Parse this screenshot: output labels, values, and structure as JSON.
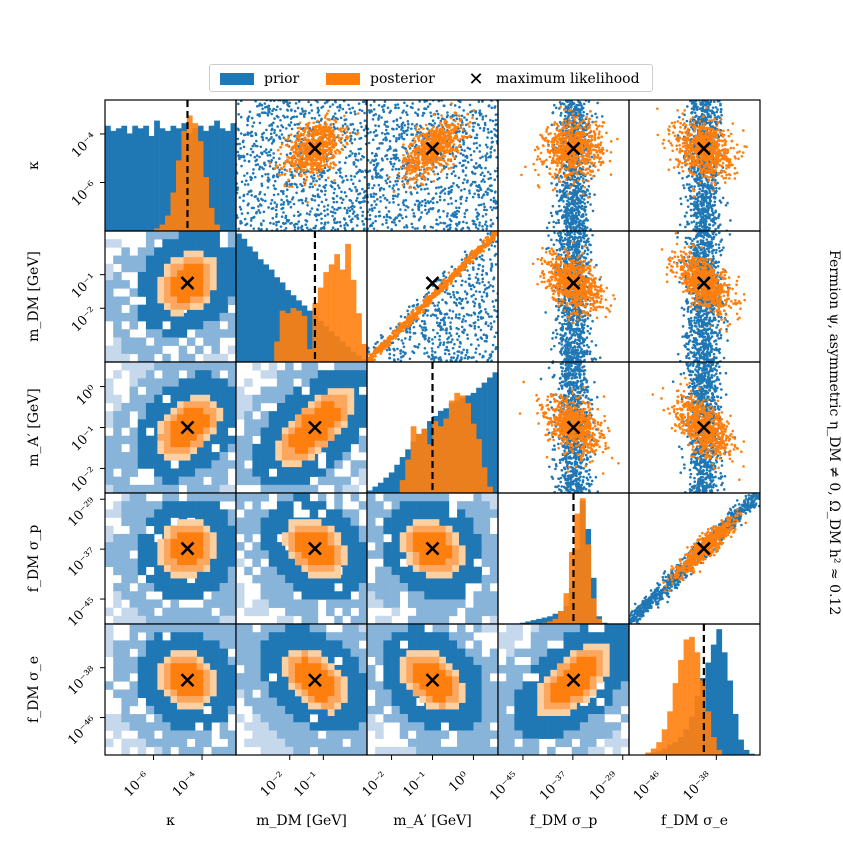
{
  "chart_data": {
    "type": "corner",
    "title": "Fermion ψ, asymmetric η_DM ≠ 0, Ω_DM h² ≈ 0.12",
    "legend": {
      "placement": "top-center",
      "entries": [
        {
          "label": "prior",
          "color": "#1f77b4"
        },
        {
          "label": "posterior",
          "color": "#ff7f0e"
        },
        {
          "label": "maximum likelihood",
          "marker": "x",
          "color": "#000000"
        }
      ]
    },
    "params": [
      {
        "name": "κ",
        "scale": "log",
        "range": [
          -8,
          -2.6
        ],
        "ticks": [
          {
            "v": -6,
            "l": "10⁻⁶"
          },
          {
            "v": -4,
            "l": "10⁻⁴"
          }
        ],
        "ml": -4.6,
        "prior_hist": [
          0.82,
          0.78,
          0.8,
          0.82,
          0.76,
          0.82,
          0.8,
          0.82,
          0.74,
          0.86,
          0.8,
          0.78,
          0.82,
          0.8,
          0.84,
          0.76,
          0.8,
          0.82,
          0.78,
          0.82,
          0.86,
          0.8,
          0.78,
          0.84
        ],
        "post_hist": [
          0,
          0,
          0,
          0,
          0,
          0,
          0,
          0,
          0,
          0.02,
          0.05,
          0.12,
          0.3,
          0.55,
          0.78,
          0.9,
          0.84,
          0.7,
          0.42,
          0.18,
          0.05,
          0,
          0,
          0
        ]
      },
      {
        "name": "m_DM [GeV]",
        "scale": "log",
        "range": [
          -3.6,
          0.3
        ],
        "ticks": [
          {
            "v": -2,
            "l": "10⁻²"
          },
          {
            "v": -1,
            "l": "10⁻¹"
          }
        ],
        "ml": -1.25,
        "prior_hist": [
          1.0,
          0.96,
          0.9,
          0.86,
          0.8,
          0.76,
          0.72,
          0.66,
          0.62,
          0.56,
          0.52,
          0.48,
          0.44,
          0.4,
          0.36,
          0.32,
          0.28,
          0.24,
          0.2,
          0.16,
          0.12,
          0.08,
          0.05,
          0.02
        ],
        "post_hist": [
          0,
          0,
          0,
          0,
          0,
          0,
          0,
          0.16,
          0.4,
          0.38,
          0.42,
          0.4,
          0.36,
          0.1,
          0.46,
          0.58,
          0.7,
          0.76,
          0.84,
          0.72,
          0.92,
          0.64,
          0.38,
          0.14
        ]
      },
      {
        "name": "m_A′ [GeV]",
        "scale": "log",
        "range": [
          -2.6,
          0.6
        ],
        "ticks": [
          {
            "v": -2,
            "l": "10⁻²"
          },
          {
            "v": -1,
            "l": "10⁻¹"
          },
          {
            "v": 0,
            "l": "10⁰"
          }
        ],
        "ml": -1.0,
        "prior_hist": [
          0.02,
          0.05,
          0.08,
          0.12,
          0.16,
          0.22,
          0.28,
          0.34,
          0.4,
          0.46,
          0.5,
          0.56,
          0.6,
          0.64,
          0.66,
          0.7,
          0.72,
          0.74,
          0.76,
          0.78,
          0.82,
          0.86,
          0.9,
          0.94
        ],
        "post_hist": [
          0,
          0,
          0,
          0,
          0,
          0,
          0.1,
          0.26,
          0.52,
          0.46,
          0.5,
          0.38,
          0.56,
          0.52,
          0.58,
          0.72,
          0.78,
          0.76,
          0.7,
          0.54,
          0.42,
          0.2,
          0.05,
          0
        ]
      },
      {
        "name": "f_DM σ_p",
        "scale": "log",
        "range": [
          -49,
          -28
        ],
        "ticks": [
          {
            "v": -45,
            "l": "10⁻⁴⁵"
          },
          {
            "v": -37,
            "l": "10⁻³⁷"
          },
          {
            "v": -29,
            "l": "10⁻²⁹"
          }
        ],
        "yticks": [
          {
            "v": -45,
            "l": "10⁻⁴⁵"
          },
          {
            "v": -37,
            "l": "10⁻³⁷"
          },
          {
            "v": -29,
            "l": "10⁻²⁹"
          }
        ],
        "ml": -36.9,
        "prior_hist": [
          0,
          0,
          0,
          0,
          0.01,
          0.02,
          0.03,
          0.04,
          0.05,
          0.06,
          0.08,
          0.1,
          0.14,
          0.28,
          0.58,
          0.96,
          0.74,
          0.36,
          0.06,
          0.01,
          0,
          0,
          0,
          0
        ],
        "post_hist": [
          0,
          0,
          0,
          0,
          0,
          0,
          0,
          0,
          0.01,
          0.02,
          0.04,
          0.1,
          0.24,
          0.56,
          0.86,
          0.98,
          0.62,
          0.2,
          0.04,
          0,
          0,
          0,
          0,
          0
        ]
      },
      {
        "name": "f_DM σ_e",
        "scale": "log",
        "range": [
          -52,
          -31
        ],
        "ticks": [
          {
            "v": -46,
            "l": "10⁻⁴⁶"
          },
          {
            "v": -38,
            "l": "10⁻³⁸"
          }
        ],
        "ml": -40.0,
        "prior_hist": [
          0,
          0,
          0,
          0.01,
          0.02,
          0.03,
          0.05,
          0.08,
          0.1,
          0.14,
          0.2,
          0.3,
          0.46,
          0.6,
          0.72,
          0.86,
          0.98,
          0.8,
          0.58,
          0.32,
          0.12,
          0.04,
          0.01,
          0
        ],
        "post_hist": [
          0,
          0,
          0,
          0.02,
          0.05,
          0.1,
          0.2,
          0.34,
          0.56,
          0.74,
          0.9,
          0.92,
          0.8,
          0.58,
          0.34,
          0.14,
          0.04,
          0,
          0,
          0,
          0,
          0,
          0,
          0
        ]
      }
    ],
    "posterior_corr": [
      [
        1,
        0.4,
        0.6,
        0.1,
        -0.2
      ],
      [
        0.4,
        1,
        0.95,
        -0.45,
        -0.6
      ],
      [
        0.6,
        0.95,
        1,
        -0.35,
        -0.55
      ],
      [
        0.1,
        -0.45,
        -0.35,
        1,
        0.9
      ],
      [
        -0.2,
        -0.6,
        -0.55,
        0.9,
        1
      ]
    ],
    "colors": {
      "prior": "#1f77b4",
      "prior_light": "#c6d9ec",
      "prior_mid": "#88b4da",
      "posterior": "#ff7f0e",
      "posterior_light": "#fdd0a2",
      "posterior_mid": "#fda65e"
    },
    "grid": false
  }
}
